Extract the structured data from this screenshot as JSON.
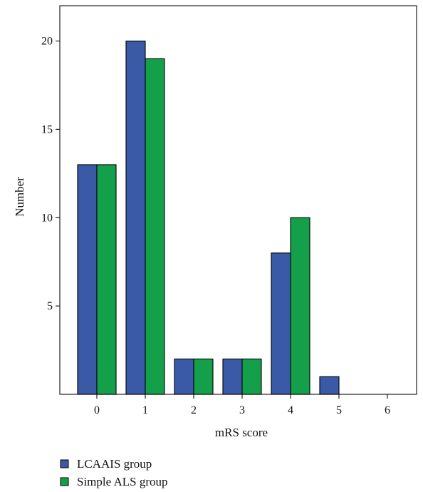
{
  "chart_data": {
    "type": "bar",
    "xlabel": "mRS score",
    "ylabel": "Number",
    "categories": [
      "0",
      "1",
      "2",
      "3",
      "4",
      "5",
      "6"
    ],
    "series": [
      {
        "name": "LCAAIS group",
        "color": "#3a5aa8",
        "values": [
          13,
          20,
          2,
          2,
          8,
          1,
          0
        ]
      },
      {
        "name": "Simple ALS group",
        "color": "#14a04b",
        "values": [
          13,
          19,
          2,
          2,
          10,
          0,
          0
        ]
      }
    ],
    "yticks": [
      5,
      10,
      15,
      20
    ],
    "ylim": [
      0,
      22
    ],
    "grid": false,
    "legend_position": "bottom-left"
  }
}
